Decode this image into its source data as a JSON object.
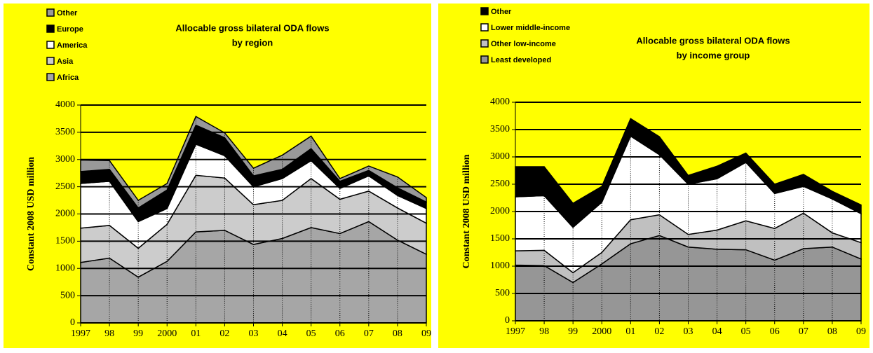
{
  "chart_data": [
    {
      "type": "stacked_area",
      "title": "Allocable gross bilateral  ODA flows",
      "subtitle": "by region",
      "y_label": "Constant 2008 USD million",
      "categories": [
        "1997",
        "98",
        "99",
        "2000",
        "01",
        "02",
        "03",
        "04",
        "05",
        "06",
        "07",
        "08",
        "09"
      ],
      "ylim": [
        0,
        4000
      ],
      "yticks": [
        0,
        500,
        1000,
        1500,
        2000,
        2500,
        3000,
        3500,
        4000
      ],
      "grid": true,
      "series": [
        {
          "name": "Africa",
          "color": "#a6a6a6",
          "values": [
            1110,
            1190,
            840,
            1130,
            1670,
            1700,
            1440,
            1550,
            1750,
            1640,
            1860,
            1520,
            1260
          ]
        },
        {
          "name": "Asia",
          "color": "#cccccc",
          "values": [
            630,
            600,
            530,
            680,
            1040,
            960,
            730,
            700,
            900,
            630,
            560,
            590,
            570
          ]
        },
        {
          "name": "America",
          "color": "#ffffff",
          "values": [
            820,
            810,
            490,
            290,
            570,
            410,
            330,
            400,
            330,
            200,
            280,
            230,
            270
          ]
        },
        {
          "name": "Europe",
          "color": "#000000",
          "values": [
            220,
            220,
            250,
            340,
            350,
            330,
            200,
            170,
            220,
            130,
            100,
            140,
            120
          ]
        },
        {
          "name": "Other",
          "color": "#999999",
          "values": [
            210,
            160,
            140,
            120,
            160,
            90,
            140,
            260,
            230,
            50,
            80,
            200,
            80
          ]
        }
      ]
    },
    {
      "type": "stacked_area",
      "title": "Allocable gross bilateral  ODA flows",
      "subtitle": "by income group",
      "y_label": "Constant 2008 USD million",
      "categories": [
        "1997",
        "98",
        "99",
        "2000",
        "01",
        "02",
        "03",
        "04",
        "05",
        "06",
        "07",
        "08",
        "09"
      ],
      "ylim": [
        0,
        4000
      ],
      "yticks": [
        0,
        500,
        1000,
        1500,
        2000,
        2500,
        3000,
        3500,
        4000
      ],
      "grid": true,
      "series": [
        {
          "name": "Least developed",
          "color": "#969696",
          "values": [
            1020,
            1010,
            700,
            1040,
            1410,
            1560,
            1350,
            1310,
            1300,
            1110,
            1320,
            1350,
            1130
          ]
        },
        {
          "name": "Other low-income",
          "color": "#c0c0c0",
          "values": [
            260,
            280,
            180,
            210,
            440,
            380,
            230,
            350,
            530,
            580,
            650,
            260,
            300
          ]
        },
        {
          "name": "Lower middle-income",
          "color": "#ffffff",
          "values": [
            990,
            1000,
            830,
            920,
            1530,
            1100,
            920,
            940,
            1070,
            640,
            490,
            620,
            530
          ]
        },
        {
          "name": "Other",
          "color": "#000000",
          "values": [
            550,
            530,
            440,
            290,
            320,
            330,
            160,
            230,
            170,
            170,
            220,
            140,
            160
          ]
        }
      ]
    }
  ]
}
